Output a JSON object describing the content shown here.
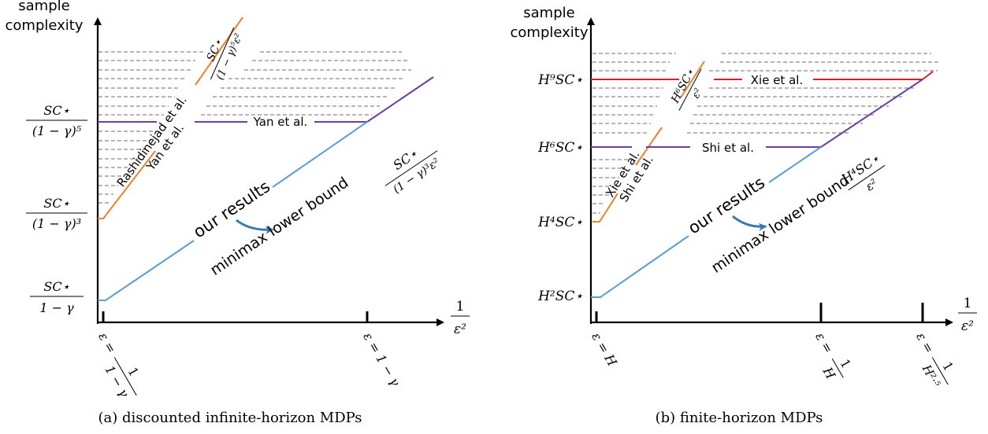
{
  "panels": [
    {
      "caption": "(a) discounted infinite-horizon MDPs",
      "y_axis_title_1": "sample",
      "y_axis_title_2": "complexity",
      "x_axis_label_num": "1",
      "x_axis_label_den": "ε²",
      "y_ticks": [
        {
          "num": "SC⋆",
          "den": "(1 − γ)⁵"
        },
        {
          "num": "SC⋆",
          "den": "(1 − γ)³"
        },
        {
          "num": "SC⋆",
          "den": "1 − γ"
        }
      ],
      "x_ticks": [
        {
          "lhs": "ε =",
          "num": "1",
          "den": "1 − γ"
        },
        {
          "lhs": "ε = 1 − γ"
        }
      ],
      "orange_label_1": "Rashidinejad et al.",
      "orange_label_2": "Yan et al.",
      "orange_rate_num": "SC⋆",
      "orange_rate_den": "(1 − γ)⁵ε²",
      "purple_label": "Yan et al.",
      "our_results": "our results",
      "minimax": "minimax lower bound",
      "blue_rate_num": "SC⋆",
      "blue_rate_den": "(1 − γ)³ε²"
    },
    {
      "caption": "(b) finite-horizon MDPs",
      "y_axis_title_1": "sample",
      "y_axis_title_2": "complexity",
      "x_axis_label_num": "1",
      "x_axis_label_den": "ε²",
      "y_ticks": [
        "H⁹SC⋆",
        "H⁶SC⋆",
        "H⁴SC⋆",
        "H²SC⋆"
      ],
      "x_ticks": [
        {
          "lhs": "ε = H"
        },
        {
          "lhs": "ε =",
          "num": "1",
          "den": "H"
        },
        {
          "lhs": "ε =",
          "num": "1",
          "den": "H²·⁵"
        }
      ],
      "orange_label_1": "Xie et al.",
      "orange_label_2": "Shi et al.",
      "orange_rate_num": "H⁶SC⋆",
      "orange_rate_den": "ε²",
      "red_label": "Xie et al.",
      "purple_label": "Shi et al.",
      "our_results": "our results",
      "minimax": "minimax lower bound",
      "blue_rate_num": "H⁴SC⋆",
      "blue_rate_den": "ε²"
    }
  ],
  "colors": {
    "axis": "#000000",
    "dash": "#6b6b6b",
    "orange": "#f07f2e",
    "blue": "#5a9fd4",
    "purple": "#6a3ea8",
    "red": "#d81e2a",
    "arrow": "#3578b4"
  }
}
